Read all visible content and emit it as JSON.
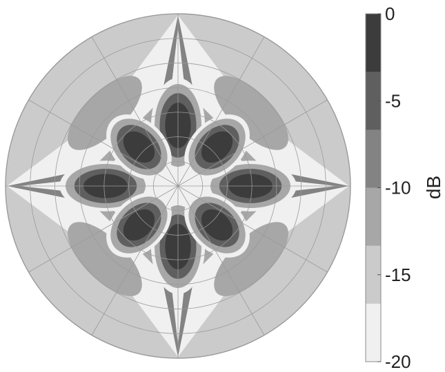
{
  "chart_data": {
    "type": "heatmap",
    "projection": "polar",
    "title": "",
    "colorbar": {
      "label": "dB",
      "ticks": [
        0,
        -5,
        -10,
        -15,
        -20
      ],
      "tick_labels": [
        "0",
        "-5",
        "-10",
        "-15",
        "-20"
      ],
      "range": [
        -20,
        0
      ],
      "colors_top_to_bottom": [
        "#3c3c3c",
        "#5f5f5f",
        "#838383",
        "#a7a7a7",
        "#cbcbcb",
        "#f0f0f0"
      ],
      "position": "right"
    },
    "levels_db": [
      -20,
      -16,
      -12,
      -8,
      -4,
      0
    ],
    "grid": {
      "radial_rings": 7,
      "angular_spokes_deg": [
        0,
        30,
        60,
        90,
        120,
        150,
        180,
        210,
        240,
        270,
        300,
        330
      ]
    },
    "pattern": {
      "symmetry": "four-fold (45-degree diagonals and cardinal axes)",
      "main_lobes": [
        {
          "direction": "up",
          "peak_db": 0
        },
        {
          "direction": "down",
          "peak_db": 0
        },
        {
          "direction": "left",
          "peak_db": 0
        },
        {
          "direction": "right",
          "peak_db": 0
        },
        {
          "direction": "upper-left",
          "peak_db": -2
        },
        {
          "direction": "upper-right",
          "peak_db": -2
        },
        {
          "direction": "lower-left",
          "peak_db": -2
        },
        {
          "direction": "lower-right",
          "peak_db": -2
        }
      ],
      "outer_lobes_db": -12,
      "rim_level_db": -16,
      "null_rings": "white ring around main lobes and along spokes toward cardinal tips"
    }
  }
}
